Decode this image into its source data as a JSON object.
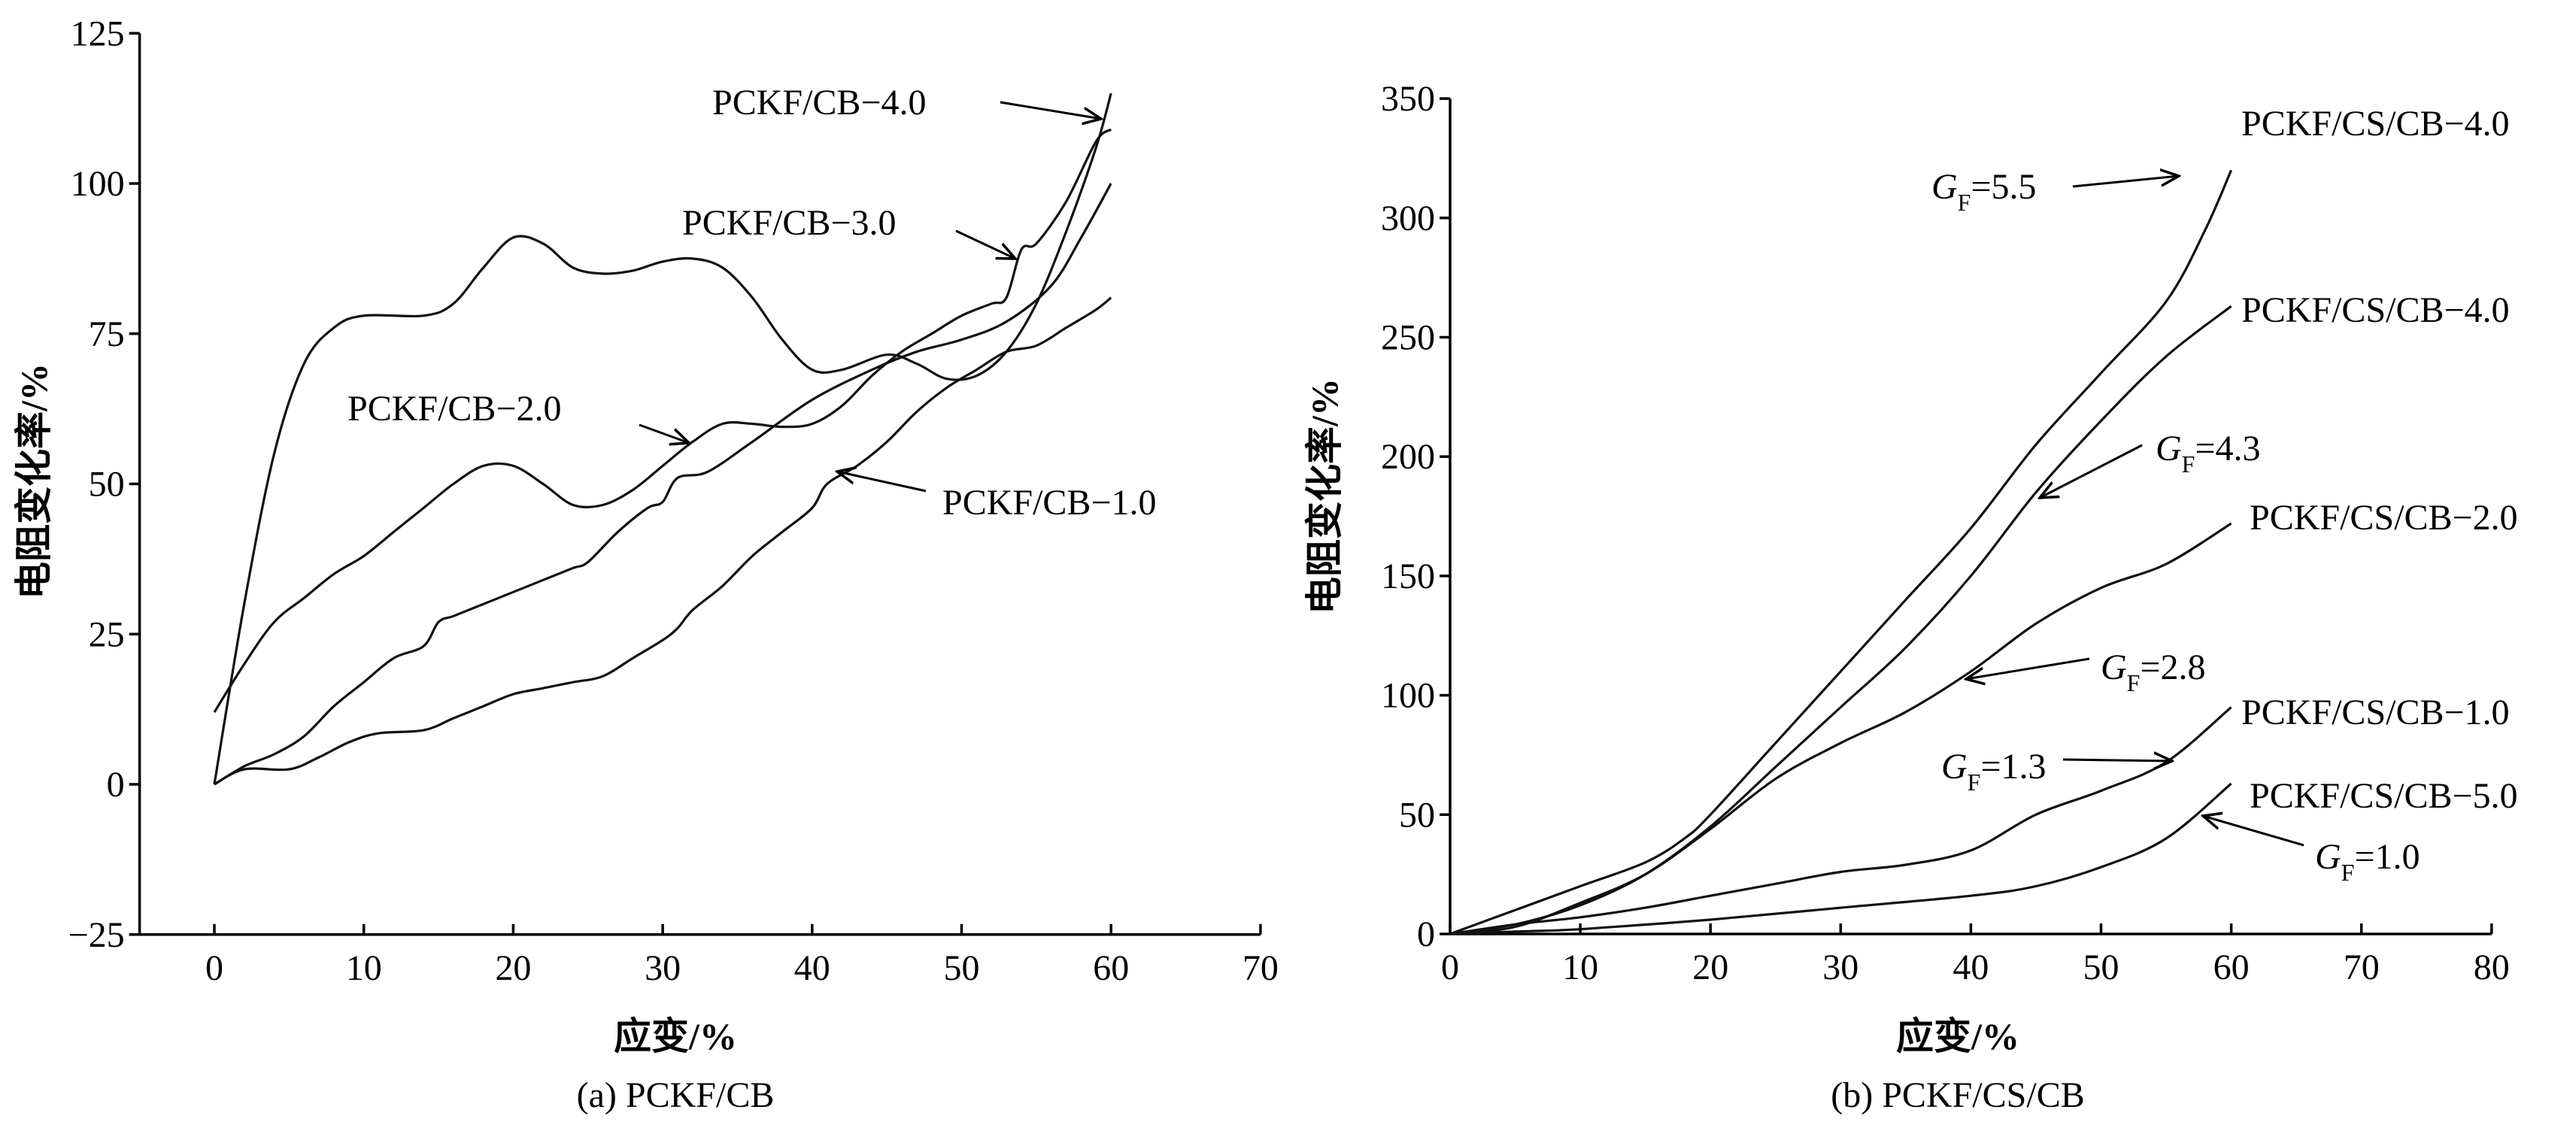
{
  "chart_data": [
    {
      "type": "line",
      "caption": "(a) PCKF/CB",
      "xlabel": "应变/%",
      "ylabel": "电阻变化率/%",
      "xlim": [
        -5,
        70
      ],
      "ylim": [
        -25,
        125
      ],
      "xticks": [
        0,
        10,
        20,
        30,
        40,
        50,
        60,
        70
      ],
      "yticks": [
        -25,
        0,
        25,
        50,
        75,
        100,
        125
      ],
      "ytick_labels": [
        "−25",
        "0",
        "25",
        "50",
        "75",
        "100",
        "125"
      ],
      "grid": false,
      "series": [
        {
          "name": "PCKF/CB−4.0",
          "x": [
            0,
            2,
            4,
            6,
            8,
            10,
            14,
            16,
            18,
            20,
            22,
            24,
            26,
            28,
            30,
            32,
            34,
            36,
            38,
            40,
            42,
            45,
            47,
            49,
            51,
            53,
            55,
            57,
            59,
            60
          ],
          "y": [
            0,
            30,
            55,
            70,
            76,
            78,
            78,
            80,
            86,
            91,
            90,
            86,
            85,
            85.5,
            87,
            87.5,
            86,
            81,
            74,
            69,
            69,
            71.5,
            70,
            67.5,
            68,
            72,
            80,
            92,
            106,
            115
          ]
        },
        {
          "name": "PCKF/CB−3.0",
          "x": [
            0,
            2,
            4,
            6,
            8,
            10,
            12,
            14,
            16,
            18,
            20,
            22,
            24,
            26,
            28,
            30,
            32,
            34,
            36,
            38,
            40,
            42,
            44,
            46,
            48,
            50,
            52,
            53,
            54,
            55,
            57,
            59,
            60
          ],
          "y": [
            12,
            20,
            27,
            31,
            35,
            38,
            42,
            46,
            50,
            53,
            53,
            50,
            46.5,
            46.5,
            49,
            53,
            57,
            60,
            60,
            59.5,
            60,
            63,
            68,
            72,
            75,
            78,
            80,
            81,
            89,
            90,
            97,
            107,
            109
          ]
        },
        {
          "name": "PCKF/CB−2.0",
          "x": [
            0,
            2,
            4,
            6,
            8,
            10,
            12,
            14,
            15,
            16,
            18,
            20,
            22,
            24,
            25,
            27,
            29,
            30,
            31,
            33,
            36,
            40,
            44,
            47,
            50,
            53,
            56,
            58,
            60
          ],
          "y": [
            0,
            3,
            5,
            8,
            13,
            17,
            21,
            23,
            27,
            28,
            30,
            32,
            34,
            36,
            37,
            42,
            46,
            47,
            51,
            52,
            57,
            64,
            69,
            72,
            74,
            77,
            83,
            91,
            100
          ]
        },
        {
          "name": "PCKF/CB−1.0",
          "x": [
            0,
            2,
            5,
            7,
            9,
            11,
            14,
            16,
            18,
            20,
            22,
            24,
            26,
            28,
            30,
            31,
            32,
            34,
            36,
            38,
            40,
            41,
            43,
            45,
            47,
            49,
            51,
            53,
            55,
            57,
            59,
            60
          ],
          "y": [
            0,
            2.5,
            2.5,
            4.5,
            7,
            8.5,
            9,
            11,
            13,
            15,
            16,
            17,
            18,
            21,
            24,
            26,
            29,
            33,
            38,
            42,
            46,
            50,
            53,
            57,
            62,
            66,
            69,
            72,
            73,
            76,
            79,
            81
          ]
        }
      ],
      "annotations": [
        {
          "text": "PCKF/CB−4.0"
        },
        {
          "text": "PCKF/CB−3.0"
        },
        {
          "text": "PCKF/CB−2.0"
        },
        {
          "text": "PCKF/CB−1.0"
        }
      ]
    },
    {
      "type": "line",
      "caption": "(b) PCKF/CS/CB",
      "xlabel": "应变/%",
      "ylabel": "电阻变化率/%",
      "xlim": [
        0,
        80
      ],
      "ylim": [
        0,
        350
      ],
      "xticks": [
        0,
        10,
        20,
        30,
        40,
        50,
        60,
        70,
        80
      ],
      "yticks": [
        0,
        50,
        100,
        150,
        200,
        250,
        300,
        350
      ],
      "ytick_labels": [
        "0",
        "50",
        "100",
        "150",
        "200",
        "250",
        "300",
        "350"
      ],
      "grid": false,
      "series": [
        {
          "name": "PCKF/CS/CB−4.0",
          "gf": "5.5",
          "x": [
            0,
            5,
            10,
            15,
            18,
            20,
            25,
            30,
            35,
            40,
            45,
            50,
            55,
            58,
            60
          ],
          "y": [
            0,
            10,
            20,
            30,
            40,
            50,
            80,
            110,
            140,
            170,
            205,
            235,
            265,
            295,
            320
          ]
        },
        {
          "name": "PCKF/CS/CB−4.0",
          "gf": "4.3",
          "x": [
            0,
            5,
            10,
            15,
            20,
            25,
            30,
            35,
            40,
            45,
            50,
            55,
            60
          ],
          "y": [
            0,
            4,
            12,
            25,
            45,
            70,
            95,
            120,
            150,
            185,
            215,
            242,
            263
          ]
        },
        {
          "name": "PCKF/CS/CB−2.0",
          "gf": "2.8",
          "x": [
            0,
            5,
            10,
            15,
            20,
            25,
            30,
            35,
            40,
            45,
            50,
            55,
            60
          ],
          "y": [
            0,
            3,
            13,
            25,
            44,
            65,
            80,
            93,
            110,
            130,
            145,
            155,
            172
          ]
        },
        {
          "name": "PCKF/CS/CB−1.0",
          "gf": "1.3",
          "x": [
            0,
            5,
            10,
            15,
            20,
            25,
            30,
            35,
            40,
            45,
            50,
            55,
            60
          ],
          "y": [
            0,
            4,
            7,
            11,
            16,
            21,
            26,
            29,
            35,
            50,
            60,
            72,
            95
          ]
        },
        {
          "name": "PCKF/CS/CB−5.0",
          "gf": "1.0",
          "x": [
            0,
            5,
            10,
            20,
            30,
            40,
            45,
            50,
            55,
            60
          ],
          "y": [
            0,
            1,
            2,
            6,
            11,
            16,
            20,
            28,
            40,
            63
          ]
        }
      ],
      "annotations": [
        {
          "text": "PCKF/CS/CB−4.0"
        },
        {
          "text": "PCKF/CS/CB−4.0"
        },
        {
          "text": "PCKF/CS/CB−2.0"
        },
        {
          "text": "PCKF/CS/CB−1.0"
        },
        {
          "text": "PCKF/CS/CB−5.0"
        }
      ],
      "gf_labels": [
        {
          "sym": "G",
          "sub": "F",
          "value": "=5.5"
        },
        {
          "sym": "G",
          "sub": "F",
          "value": "=4.3"
        },
        {
          "sym": "G",
          "sub": "F",
          "value": "=2.8"
        },
        {
          "sym": "G",
          "sub": "F",
          "value": "=1.3"
        },
        {
          "sym": "G",
          "sub": "F",
          "value": "=1.0"
        }
      ]
    }
  ]
}
